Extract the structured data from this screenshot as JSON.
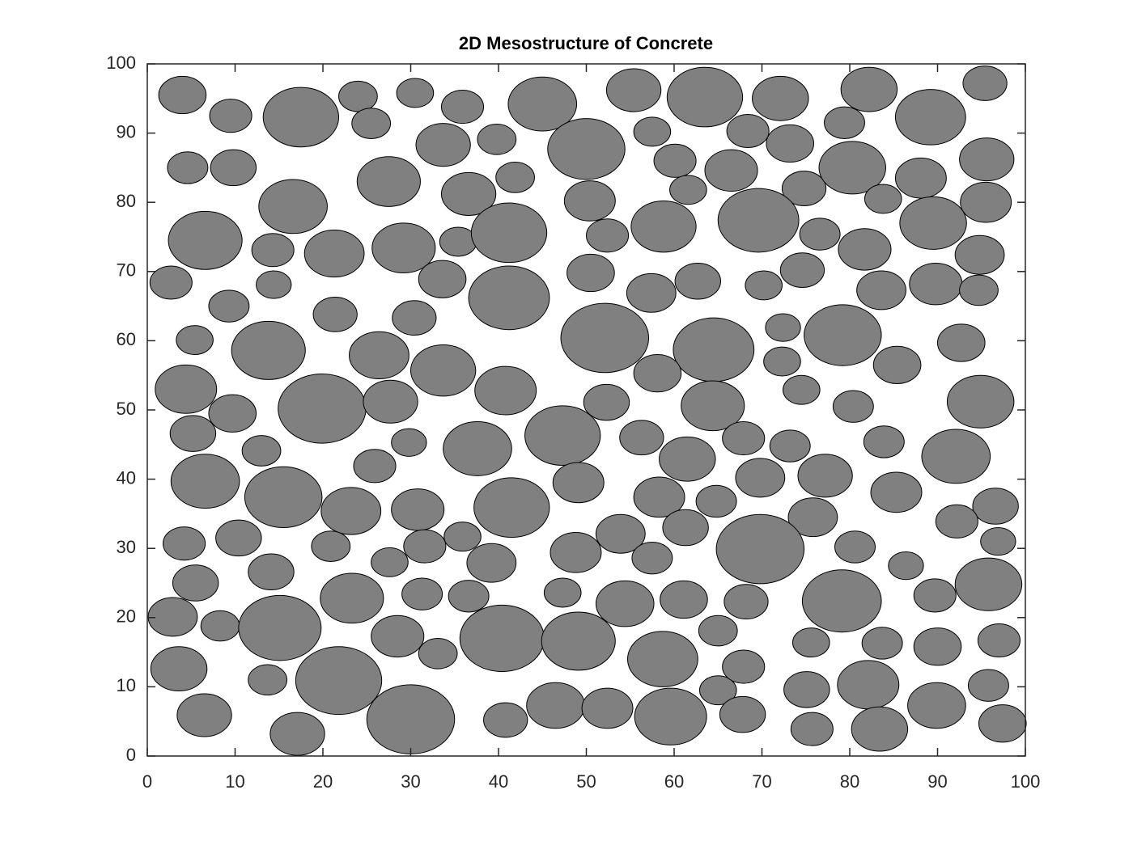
{
  "chart_data": {
    "type": "scatter",
    "title": "2D Mesostructure of Concrete",
    "color": "#808080",
    "edgecolor": "#000000",
    "xlim": [
      0,
      100
    ],
    "ylim": [
      0,
      100
    ],
    "xticks": [
      0,
      10,
      20,
      30,
      40,
      50,
      60,
      70,
      80,
      90,
      100
    ],
    "yticks": [
      0,
      10,
      20,
      30,
      40,
      50,
      60,
      70,
      80,
      90,
      100
    ],
    "x": [
      4,
      9.5,
      17.5,
      24,
      25.5,
      30.5,
      35.9,
      45,
      55.4,
      63.5,
      72.1,
      82.2,
      95.4,
      89.2,
      79.4,
      68.4,
      73.2,
      57.5,
      50,
      39.8,
      33.7,
      27.5,
      41.9,
      36.6,
      4.6,
      9.8,
      60.1,
      66.5,
      61.6,
      74.8,
      80.3,
      88.1,
      95.6,
      83.8,
      95.5,
      89.5,
      69.6,
      58.8,
      50.4,
      16.6,
      6.6,
      14.3,
      21.3,
      29.2,
      35.4,
      41.2,
      52.4,
      76.6,
      81.7,
      94.8,
      2.7,
      14.4,
      50.5,
      33.6,
      41.2,
      57.4,
      62.7,
      70.2,
      74.6,
      83.6,
      89.8,
      94.7,
      9.3,
      21.4,
      30.4,
      5.4,
      13.8,
      26.4,
      33.7,
      52.1,
      64.5,
      72.4,
      79.2,
      92.7,
      72.3,
      58.1,
      85.4,
      4.4,
      9.7,
      19.9,
      27.7,
      40.8,
      52.3,
      64.4,
      74.5,
      80.4,
      94.9,
      5.2,
      13,
      29.8,
      37.6,
      47.3,
      56.3,
      61.5,
      67.9,
      73.2,
      83.9,
      92.1,
      25.9,
      6.6,
      15.5,
      23.2,
      30.8,
      41.5,
      49.1,
      58.3,
      64.8,
      69.8,
      77.2,
      85.3,
      96.6,
      92.2,
      75.8,
      53.9,
      61.3,
      69.8,
      80.6,
      96.9,
      4.2,
      10.4,
      20.9,
      31.6,
      35.9,
      39.2,
      27.6,
      48.8,
      57.5,
      86.4,
      95.8,
      5.5,
      14.1,
      23.3,
      31.3,
      36.6,
      47.3,
      54.4,
      61.1,
      68.2,
      79.1,
      89.7,
      2.9,
      8.3,
      15.1,
      28.5,
      33.1,
      40.4,
      49.1,
      58.7,
      65,
      75.6,
      83.7,
      90,
      97,
      3.6,
      13.7,
      21.8,
      30,
      17.1,
      6.5,
      40.8,
      46.5,
      52.4,
      59.6,
      65,
      67.9,
      67.8,
      75.1,
      75.7,
      82.1,
      83.4,
      89.9,
      95.8,
      97.4
    ],
    "y": [
      95.5,
      92.5,
      92.3,
      95.3,
      91.4,
      95.8,
      93.8,
      94.2,
      96.2,
      95.2,
      95,
      96.3,
      97.2,
      92.3,
      91.5,
      90.3,
      88.5,
      90.2,
      87.7,
      89.1,
      88.3,
      83,
      83.6,
      81.2,
      85,
      85,
      86,
      84.6,
      81.8,
      82,
      85,
      83.5,
      86.2,
      80.5,
      80,
      77,
      77.4,
      76.5,
      80.2,
      79.4,
      74.5,
      73.1,
      72.6,
      73.4,
      74.3,
      75.6,
      75.2,
      75.4,
      73.2,
      72.4,
      68.4,
      68.1,
      69.8,
      68.9,
      66.2,
      66.9,
      68.6,
      68,
      70.2,
      67.3,
      68.2,
      67.3,
      65,
      63.8,
      63.3,
      60.1,
      58.6,
      57.9,
      55.7,
      60.4,
      58.7,
      61.9,
      60.8,
      59.7,
      57,
      55.3,
      56.5,
      53,
      49.5,
      50.2,
      51.2,
      52.8,
      51.1,
      50.6,
      52.9,
      50.5,
      51.2,
      46.6,
      44.1,
      45.3,
      44.4,
      46.3,
      46,
      42.9,
      45.9,
      44.8,
      45.4,
      43.3,
      41.9,
      39.7,
      37.4,
      35.4,
      35.6,
      35.9,
      39.5,
      37.4,
      36.8,
      40.2,
      40.5,
      38.1,
      36.1,
      33.9,
      34.5,
      32.1,
      33,
      29.9,
      30.2,
      31,
      30.7,
      31.5,
      30.3,
      30.3,
      31.7,
      27.9,
      28,
      29.4,
      28.6,
      27.5,
      24.8,
      25,
      26.6,
      22.8,
      23.4,
      23.1,
      23.6,
      22,
      22.6,
      22.3,
      22.4,
      23.2,
      20.1,
      18.8,
      18.5,
      17.3,
      14.8,
      17,
      16.6,
      14,
      18.1,
      16.4,
      16.3,
      15.8,
      16.7,
      12.6,
      11,
      10.9,
      5.3,
      3.2,
      5.9,
      5.2,
      7.3,
      6.9,
      5.7,
      9.5,
      12.9,
      6,
      9.6,
      3.9,
      10.3,
      3.9,
      7.3,
      10.2,
      4.7
    ],
    "radius": [
      2.7,
      2.4,
      4.3,
      2.2,
      2.2,
      2.1,
      2.4,
      3.9,
      3.1,
      4.3,
      3.2,
      3.2,
      2.5,
      4,
      2.3,
      2.4,
      2.7,
      2.1,
      4.4,
      2.2,
      3.1,
      3.6,
      2.2,
      3.1,
      2.3,
      2.6,
      2.4,
      3,
      2.1,
      2.5,
      3.8,
      2.9,
      3.1,
      2.1,
      2.9,
      3.8,
      4.6,
      3.7,
      2.9,
      3.9,
      4.2,
      2.4,
      3.4,
      3.6,
      2.1,
      4.3,
      2.4,
      2.3,
      3,
      2.8,
      2.4,
      2,
      2.7,
      2.7,
      4.6,
      2.8,
      2.6,
      2.1,
      2.5,
      2.8,
      3,
      2.2,
      2.3,
      2.5,
      2.5,
      2.1,
      4.2,
      3.4,
      3.7,
      5,
      4.6,
      2,
      4.4,
      2.7,
      2.1,
      2.7,
      2.7,
      3.5,
      2.7,
      5,
      3.1,
      3.5,
      2.6,
      3.6,
      2.1,
      2.3,
      3.8,
      2.6,
      2.2,
      2,
      3.9,
      4.3,
      2.5,
      3.2,
      2.4,
      2.3,
      2.3,
      3.9,
      2.4,
      3.9,
      4.4,
      3.4,
      3,
      4.3,
      2.9,
      2.9,
      2.3,
      2.8,
      3.1,
      2.9,
      2.6,
      2.4,
      2.8,
      2.8,
      2.6,
      5,
      2.3,
      2,
      2.4,
      2.6,
      2.2,
      2.4,
      2.1,
      2.8,
      2.1,
      2.9,
      2.3,
      2,
      3.8,
      2.6,
      2.6,
      3.6,
      2.3,
      2.3,
      2.1,
      3.3,
      2.7,
      2.5,
      4.5,
      2.4,
      2.8,
      2.2,
      4.7,
      3,
      2.2,
      4.8,
      4.2,
      4,
      2.2,
      2.1,
      2.3,
      2.7,
      2.4,
      3.2,
      2.2,
      4.9,
      5,
      3.1,
      3.1,
      2.5,
      3.3,
      2.9,
      4.1,
      2.1,
      2.4,
      2.6,
      2.6,
      2.4,
      3.5,
      3.2,
      3.3,
      2.3,
      2.7
    ]
  }
}
